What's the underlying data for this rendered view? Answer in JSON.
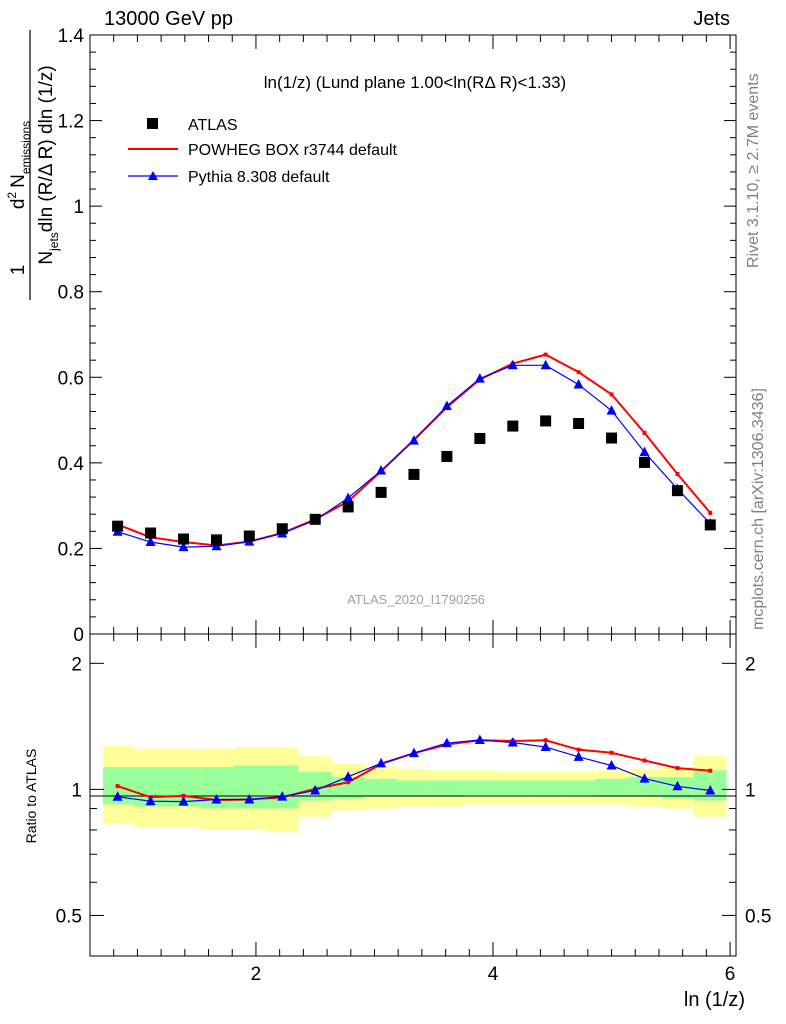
{
  "header": {
    "left": "13000 GeV pp",
    "right": "Jets"
  },
  "side_labels": {
    "rivet": "Rivet 3.1.10, ≥ 2.7M events",
    "mcplots": "mcplots.cern.ch [arXiv:1306.3436]"
  },
  "chart_data": [
    {
      "type": "scatter",
      "title": "ln(1/z) (Lund plane 1.00<ln(RΔ R)<1.33)",
      "watermark": "ATLAS_2020_I1790256",
      "ylabel_text": "1/N_jets dln (R/Δ R) dln (1/z) d² N_emissions",
      "ylabel_parts": {
        "one": "1",
        "d2": "d",
        "sup2": "2",
        "N": "N",
        "emissions": "emissions",
        "Nj": "N",
        "jets": "jets",
        "denom_rest": "dln (R/Δ R) dln (1/z)"
      },
      "xlim": [
        0.6,
        6.05
      ],
      "ylim": [
        0,
        1.4
      ],
      "y_ticks": [
        0,
        0.2,
        0.4,
        0.6,
        0.8,
        1,
        1.2,
        1.4
      ],
      "y_tick_labels": [
        "0",
        "0.2",
        "0.4",
        "0.6",
        "0.8",
        "1",
        "1.2",
        "1.4"
      ],
      "legend": [
        "ATLAS",
        "POWHEG BOX r3744 default",
        "Pythia 8.308 default"
      ],
      "legend_position": "top-left",
      "series": [
        {
          "name": "ATLAS",
          "color": "#000000",
          "marker": "square",
          "x": [
            0.833,
            1.111,
            1.389,
            1.667,
            1.944,
            2.222,
            2.5,
            2.778,
            3.056,
            3.333,
            3.611,
            3.889,
            4.167,
            4.444,
            4.722,
            5.0,
            5.278,
            5.556,
            5.833
          ],
          "y": [
            0.252,
            0.236,
            0.222,
            0.22,
            0.229,
            0.246,
            0.268,
            0.297,
            0.331,
            0.373,
            0.415,
            0.457,
            0.486,
            0.498,
            0.492,
            0.458,
            0.401,
            0.335,
            0.255
          ]
        },
        {
          "name": "POWHEG BOX r3744 default",
          "color": "#ff0000",
          "marker": "dot",
          "x": [
            0.833,
            1.111,
            1.389,
            1.667,
            1.944,
            2.222,
            2.5,
            2.778,
            3.056,
            3.333,
            3.611,
            3.889,
            4.167,
            4.444,
            4.722,
            5.0,
            5.278,
            5.556,
            5.833
          ],
          "y": [
            0.256,
            0.226,
            0.215,
            0.207,
            0.216,
            0.236,
            0.268,
            0.31,
            0.38,
            0.454,
            0.53,
            0.595,
            0.632,
            0.653,
            0.612,
            0.56,
            0.47,
            0.374,
            0.283
          ]
        },
        {
          "name": "Pythia 8.308 default",
          "color": "#0000ff",
          "marker": "triangle",
          "x": [
            0.833,
            1.111,
            1.389,
            1.667,
            1.944,
            2.222,
            2.5,
            2.778,
            3.056,
            3.333,
            3.611,
            3.889,
            4.167,
            4.444,
            4.722,
            5.0,
            5.278,
            5.556,
            5.833
          ],
          "y": [
            0.239,
            0.215,
            0.203,
            0.205,
            0.216,
            0.235,
            0.266,
            0.318,
            0.382,
            0.452,
            0.533,
            0.597,
            0.628,
            0.628,
            0.583,
            0.522,
            0.425,
            0.339,
            0.258
          ]
        }
      ]
    },
    {
      "type": "line",
      "ylabel": "Ratio to ATLAS",
      "xlabel": "ln (1/z)",
      "xlim": [
        0.6,
        6.05
      ],
      "ylim": [
        0.4,
        2.35
      ],
      "log_y": true,
      "x_ticks": [
        2,
        4,
        6
      ],
      "x_tick_labels": [
        "2",
        "4",
        "6"
      ],
      "y_ticks": [
        0.5,
        1,
        2
      ],
      "y_tick_labels": [
        "0.5",
        "1",
        "2"
      ],
      "bands": {
        "colors": {
          "outer": "#ffff99",
          "inner": "#99ff99"
        },
        "edges": [
          0.71,
          0.97,
          1.25,
          1.53,
          1.81,
          2.08,
          2.36,
          2.64,
          2.92,
          3.19,
          3.47,
          3.75,
          4.03,
          4.31,
          4.58,
          4.86,
          5.14,
          5.42,
          5.69,
          5.97
        ],
        "outer_lo": [
          0.83,
          0.81,
          0.81,
          0.8,
          0.8,
          0.79,
          0.86,
          0.89,
          0.9,
          0.91,
          0.91,
          0.92,
          0.92,
          0.92,
          0.92,
          0.92,
          0.91,
          0.9,
          0.86
        ],
        "outer_hi": [
          1.27,
          1.25,
          1.25,
          1.25,
          1.26,
          1.26,
          1.2,
          1.15,
          1.13,
          1.12,
          1.11,
          1.11,
          1.1,
          1.1,
          1.1,
          1.11,
          1.12,
          1.13,
          1.2
        ],
        "inner_lo": [
          0.92,
          0.91,
          0.91,
          0.9,
          0.9,
          0.9,
          0.94,
          0.95,
          0.96,
          0.96,
          0.96,
          0.97,
          0.97,
          0.97,
          0.97,
          0.96,
          0.96,
          0.95,
          0.94
        ],
        "inner_hi": [
          1.13,
          1.13,
          1.13,
          1.13,
          1.14,
          1.14,
          1.1,
          1.07,
          1.06,
          1.05,
          1.05,
          1.05,
          1.05,
          1.05,
          1.05,
          1.06,
          1.07,
          1.07,
          1.11
        ]
      },
      "series": [
        {
          "name": "POWHEG BOX r3744 default",
          "color": "#ff0000",
          "marker": "dot",
          "x": [
            0.833,
            1.111,
            1.389,
            1.667,
            1.944,
            2.222,
            2.5,
            2.778,
            3.056,
            3.333,
            3.611,
            3.889,
            4.167,
            4.444,
            4.722,
            5.0,
            5.278,
            5.556,
            5.833
          ],
          "y": [
            1.018,
            0.958,
            0.965,
            0.943,
            0.946,
            0.957,
            1.003,
            1.04,
            1.15,
            1.22,
            1.28,
            1.31,
            1.305,
            1.31,
            1.244,
            1.223,
            1.172,
            1.124,
            1.108
          ]
        },
        {
          "name": "Pythia 8.308 default",
          "color": "#0000ff",
          "marker": "triangle",
          "x": [
            0.833,
            1.111,
            1.389,
            1.667,
            1.944,
            2.222,
            2.5,
            2.778,
            3.056,
            3.333,
            3.611,
            3.889,
            4.167,
            4.444,
            4.722,
            5.0,
            5.278,
            5.556,
            5.833
          ],
          "y": [
            0.96,
            0.937,
            0.935,
            0.946,
            0.946,
            0.961,
            0.994,
            1.072,
            1.154,
            1.221,
            1.29,
            1.312,
            1.294,
            1.262,
            1.196,
            1.14,
            1.061,
            1.017,
            0.994
          ]
        }
      ]
    }
  ]
}
